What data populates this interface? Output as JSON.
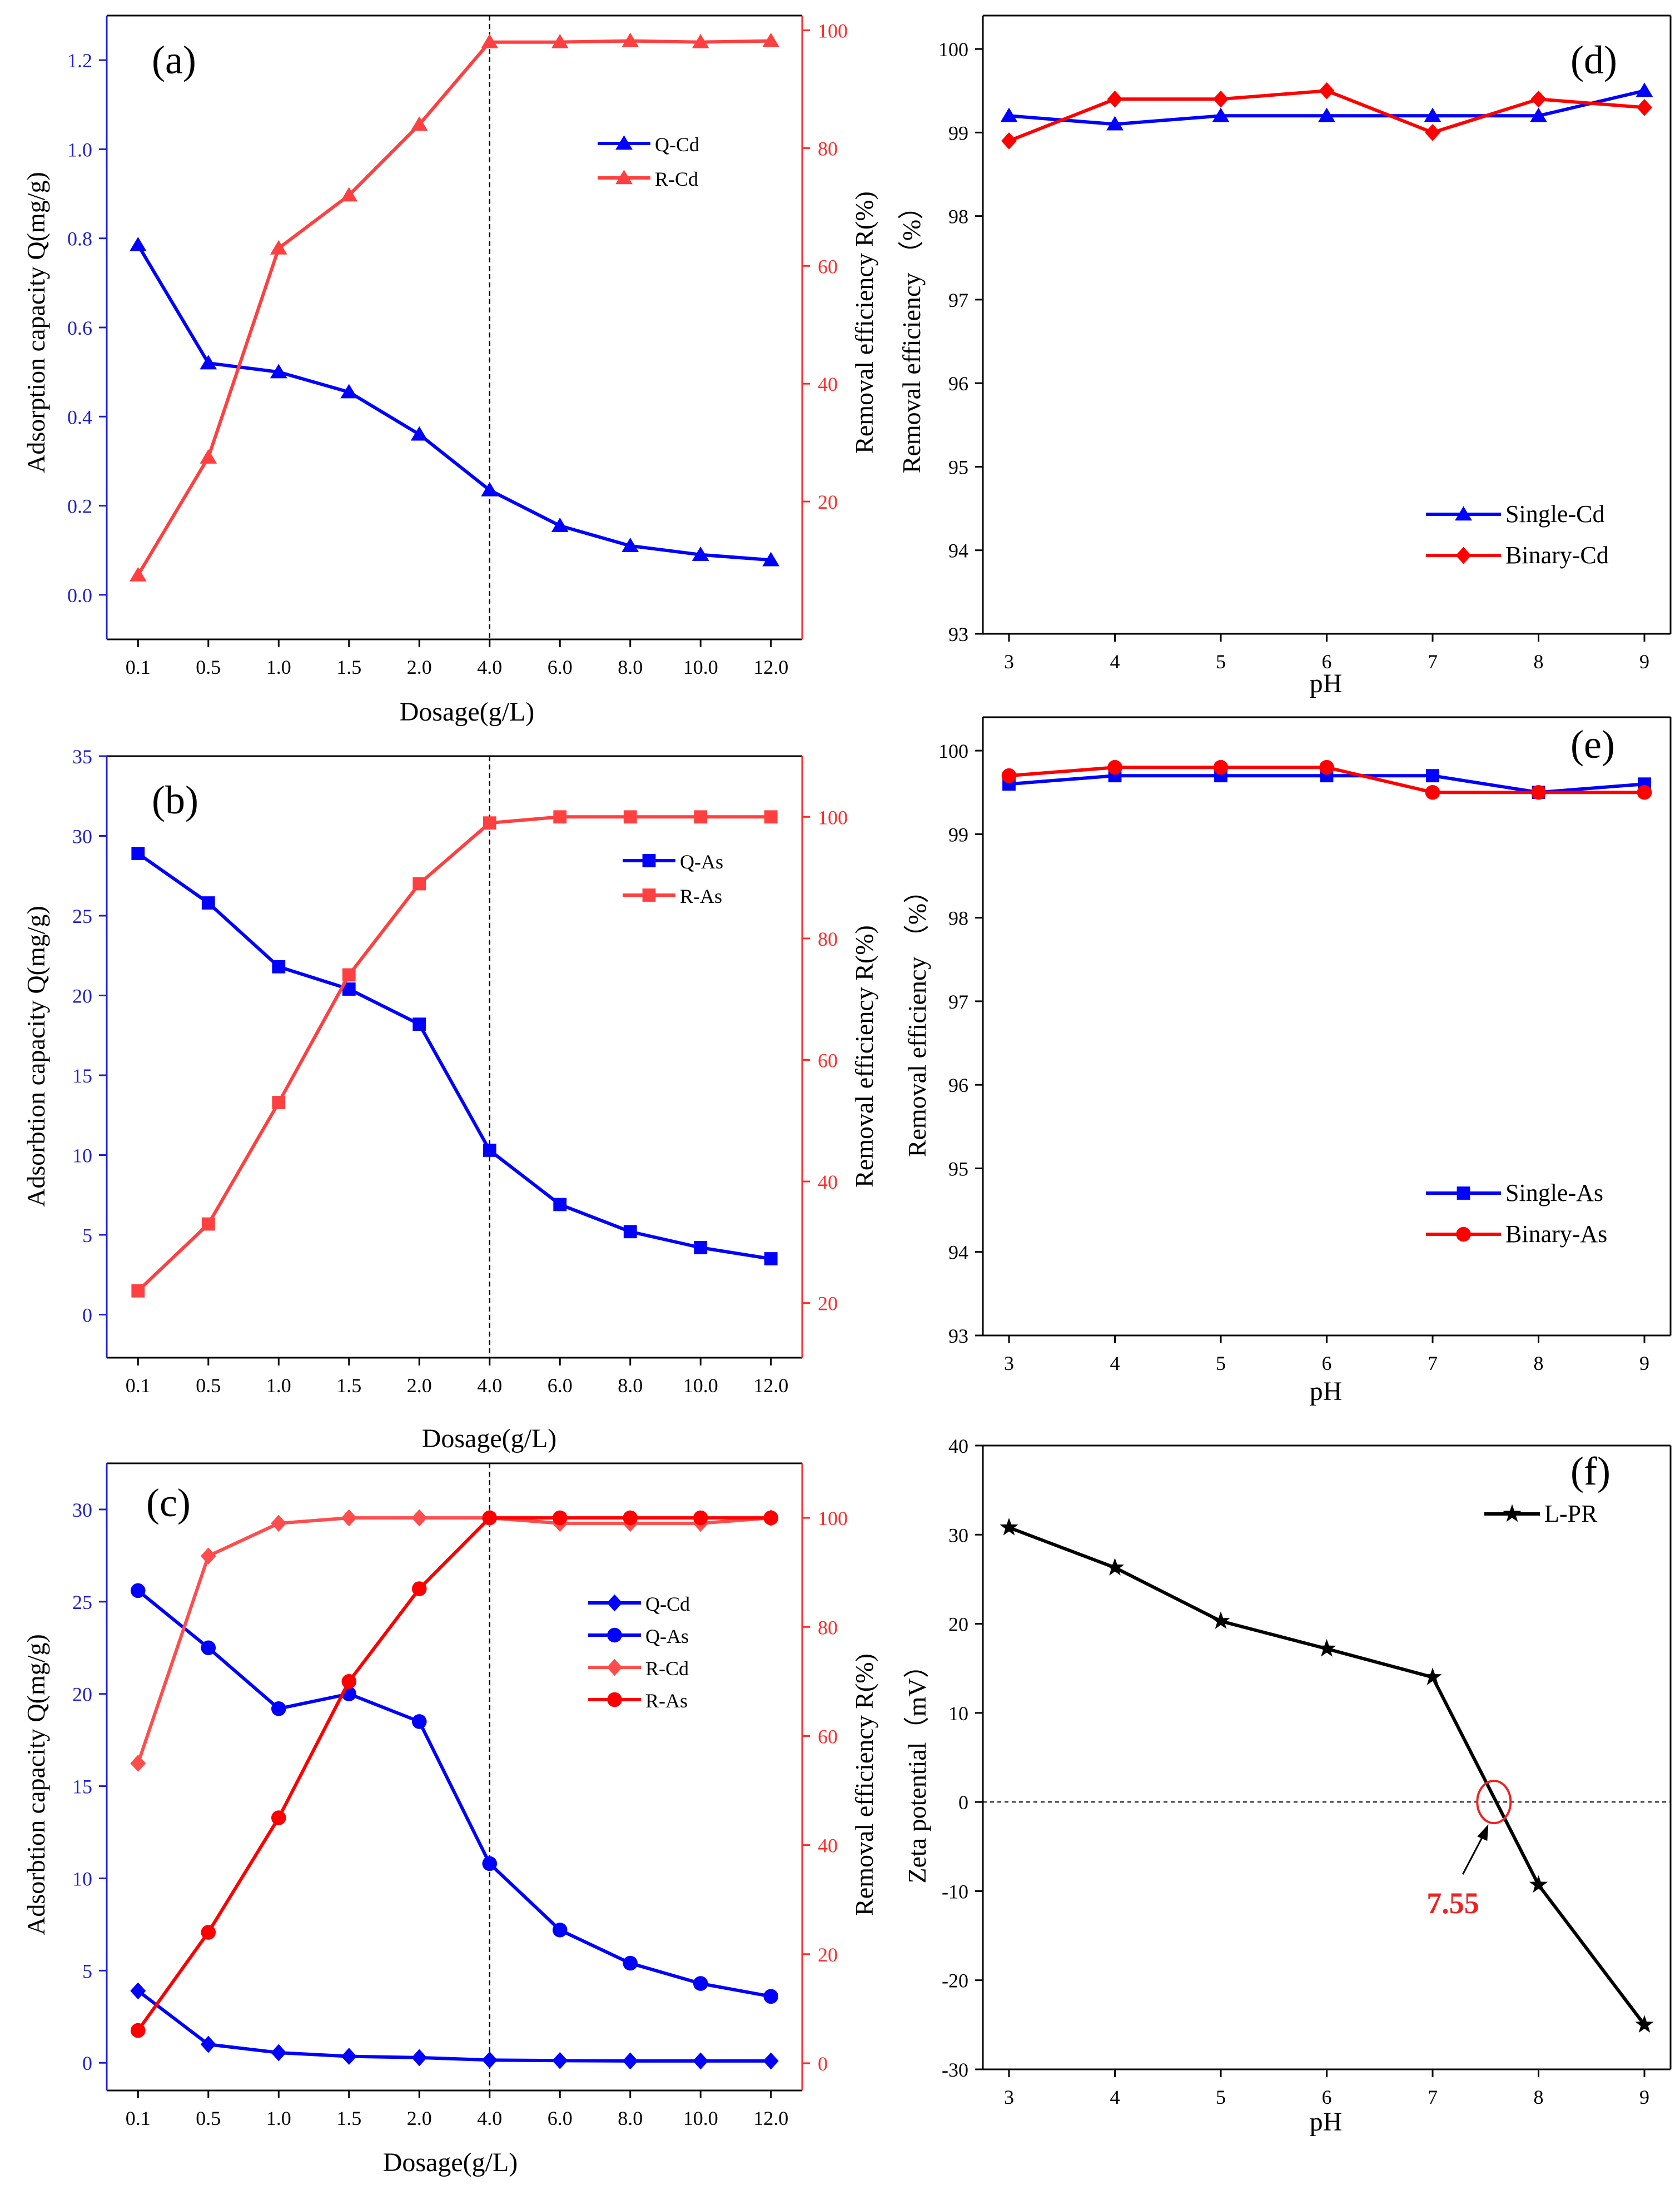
{
  "chart_data": [
    {
      "panel": "(a)",
      "type": "line",
      "x_categories": [
        "0.1",
        "0.5",
        "1.0",
        "1.5",
        "2.0",
        "4.0",
        "6.0",
        "8.0",
        "10.0",
        "12.0"
      ],
      "xlabel": "Dosage(g/L)",
      "ylabel_left": "Adsorption capacity Q(mg/g)",
      "ylabel_right": "Removal efficiency R(%)",
      "ylim_left": [
        -0.1,
        1.3
      ],
      "yticks_left": [
        "0.0",
        "0.2",
        "0.4",
        "0.6",
        "0.8",
        "1.0",
        "1.2"
      ],
      "ylim_right": [
        -3.4,
        102.5
      ],
      "yticks_right": [
        "20",
        "40",
        "60",
        "80",
        "100"
      ],
      "left_axis_color": "#1f1fcc",
      "right_axis_color": "#ff2a2a",
      "vline_category": "4.0",
      "legend_position": "upper-right",
      "series": [
        {
          "name": "Q-Cd",
          "axis": "left",
          "color": "#0000ff",
          "marker": "triangle",
          "values": [
            0.785,
            0.52,
            0.5,
            0.455,
            0.36,
            0.235,
            0.155,
            0.11,
            0.09,
            0.078
          ]
        },
        {
          "name": "R-Cd",
          "axis": "right",
          "color": "#ff4040",
          "marker": "triangle",
          "values": [
            7.5,
            27.5,
            63,
            72,
            84,
            98,
            98,
            98.2,
            98,
            98.2
          ]
        }
      ]
    },
    {
      "panel": "(b)",
      "type": "line",
      "x_categories": [
        "0.1",
        "0.5",
        "1.0",
        "1.5",
        "2.0",
        "4.0",
        "6.0",
        "8.0",
        "10.0",
        "12.0"
      ],
      "xlabel": "Dosage(g/L)",
      "ylabel_left": "Adsorbtion capacity  Q(mg/g)",
      "ylabel_right": "Removal efficiency  R(%)",
      "ylim_left": [
        -2.7,
        35
      ],
      "yticks_left": [
        "0",
        "5",
        "10",
        "15",
        "20",
        "25",
        "30",
        "35"
      ],
      "ylim_right": [
        11,
        110
      ],
      "yticks_right": [
        "20",
        "40",
        "60",
        "80",
        "100"
      ],
      "left_axis_color": "#1f1fcc",
      "right_axis_color": "#ff2a2a",
      "vline_category": "4.0",
      "legend_position": "upper-right",
      "series": [
        {
          "name": "Q-As",
          "axis": "left",
          "color": "#0000ff",
          "marker": "square",
          "values": [
            28.9,
            25.8,
            21.8,
            20.4,
            18.2,
            10.3,
            6.9,
            5.2,
            4.2,
            3.5
          ]
        },
        {
          "name": "R-As",
          "axis": "right",
          "color": "#ff4040",
          "marker": "square",
          "values": [
            22,
            33,
            53,
            74,
            89,
            99,
            100,
            100,
            100,
            100
          ]
        }
      ]
    },
    {
      "panel": "(c)",
      "type": "line",
      "x_categories": [
        "0.1",
        "0.5",
        "1.0",
        "1.5",
        "2.0",
        "4.0",
        "6.0",
        "8.0",
        "10.0",
        "12.0"
      ],
      "xlabel": "Dosage(g/L)",
      "ylabel_left": "Adsorbtion capacity  Q(mg/g)",
      "ylabel_right": "Removal efficiency  R(%)",
      "ylim_left": [
        -1.5,
        32.5
      ],
      "yticks_left": [
        "0",
        "5",
        "10",
        "15",
        "20",
        "25",
        "30"
      ],
      "ylim_right": [
        -5,
        110
      ],
      "yticks_right": [
        "0",
        "20",
        "40",
        "60",
        "80",
        "100"
      ],
      "left_axis_color": "#1f1fcc",
      "right_axis_color": "#ff2a2a",
      "vline_category": "4.0",
      "legend_position": "right",
      "series": [
        {
          "name": "Q-Cd",
          "axis": "left",
          "color": "#0000ff",
          "marker": "diamond",
          "values": [
            3.9,
            1.0,
            0.55,
            0.35,
            0.28,
            0.15,
            0.12,
            0.1,
            0.1,
            0.1
          ]
        },
        {
          "name": "Q-As",
          "axis": "left",
          "color": "#0000ff",
          "marker": "circle",
          "values": [
            25.6,
            22.5,
            19.2,
            20.0,
            18.5,
            10.8,
            7.2,
            5.4,
            4.3,
            3.6
          ]
        },
        {
          "name": "R-Cd",
          "axis": "right",
          "color": "#ff4d4d",
          "marker": "diamond",
          "values": [
            55,
            93,
            99,
            100,
            100,
            100,
            99,
            99,
            99,
            100
          ]
        },
        {
          "name": "R-As",
          "axis": "right",
          "color": "#ff0000",
          "marker": "circle",
          "values": [
            6,
            24,
            45,
            70,
            87,
            100,
            100,
            100,
            100,
            100
          ]
        }
      ]
    },
    {
      "panel": "(d)",
      "type": "line",
      "x_categories": [
        "3",
        "4",
        "5",
        "6",
        "7",
        "8",
        "9"
      ],
      "xlabel": "pH",
      "ylabel_left": "Removal efficiency  （%）",
      "ylim_left": [
        93,
        100.4
      ],
      "yticks_left": [
        "93",
        "94",
        "95",
        "96",
        "97",
        "98",
        "99",
        "100"
      ],
      "legend_position": "lower-right",
      "series": [
        {
          "name": "Single-Cd",
          "axis": "left",
          "color": "#0000ff",
          "marker": "triangle",
          "values": [
            99.2,
            99.1,
            99.2,
            99.2,
            99.2,
            99.2,
            99.5
          ]
        },
        {
          "name": "Binary-Cd",
          "axis": "left",
          "color": "#ff0000",
          "marker": "diamond",
          "values": [
            98.9,
            99.4,
            99.4,
            99.5,
            99.0,
            99.4,
            99.3
          ]
        }
      ]
    },
    {
      "panel": "(e)",
      "type": "line",
      "x_categories": [
        "3",
        "4",
        "5",
        "6",
        "7",
        "8",
        "9"
      ],
      "xlabel": "pH",
      "ylabel_left": "Removal efficiency  （%）",
      "ylim_left": [
        93,
        100.4
      ],
      "yticks_left": [
        "93",
        "94",
        "95",
        "96",
        "97",
        "98",
        "99",
        "100"
      ],
      "legend_position": "lower-right",
      "series": [
        {
          "name": "Single-As",
          "axis": "left",
          "color": "#0000ff",
          "marker": "square",
          "values": [
            99.6,
            99.7,
            99.7,
            99.7,
            99.7,
            99.5,
            99.6
          ]
        },
        {
          "name": "Binary-As",
          "axis": "left",
          "color": "#ff0000",
          "marker": "circle",
          "values": [
            99.7,
            99.8,
            99.8,
            99.8,
            99.5,
            99.5,
            99.5
          ]
        }
      ]
    },
    {
      "panel": "(f)",
      "type": "line",
      "x_categories": [
        "3",
        "4",
        "5",
        "6",
        "7",
        "8",
        "9"
      ],
      "xlabel": "pH",
      "ylabel_left": "Zeta potential（mV）",
      "ylim_left": [
        -30,
        40
      ],
      "yticks_left": [
        "-30",
        "-20",
        "-10",
        "0",
        "10",
        "20",
        "30",
        "40"
      ],
      "legend_position": "upper-right",
      "zero_line": true,
      "annotation": {
        "text": "7.55",
        "x": 7.6,
        "y": 0,
        "color": "#ee2222"
      },
      "series": [
        {
          "name": "L-PR",
          "axis": "left",
          "color": "#000000",
          "marker": "star",
          "values": [
            30.8,
            26.3,
            20.3,
            17.2,
            14.0,
            -9.3,
            -25.0
          ]
        }
      ]
    }
  ]
}
